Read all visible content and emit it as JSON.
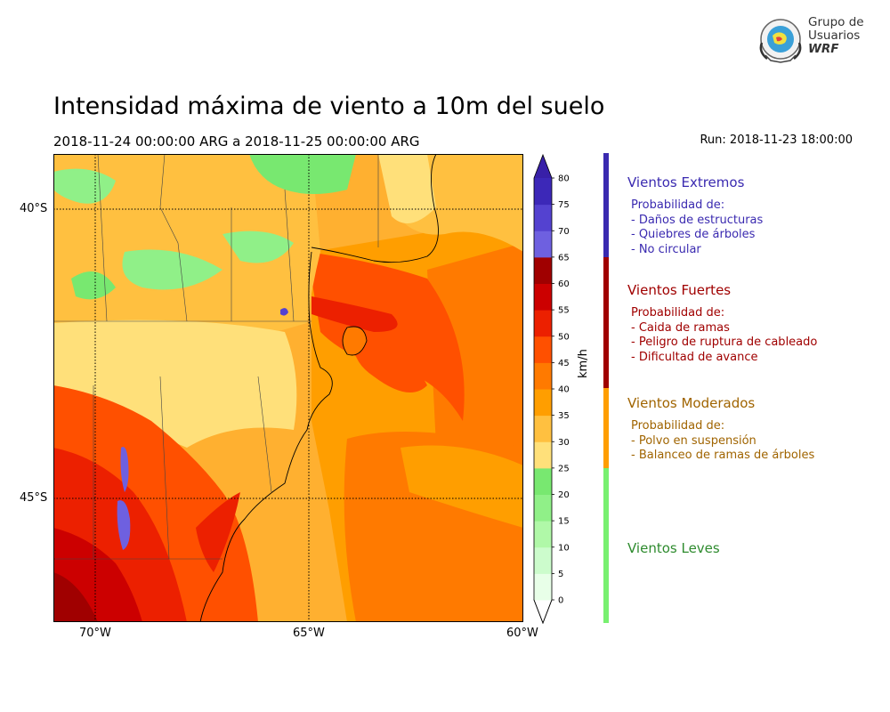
{
  "title": "Intensidad máxima de viento a 10m del suelo",
  "period": "2018-11-24 00:00:00 ARG  a  2018-11-25 00:00:00 ARG",
  "run": "Run: 2018-11-23 18:00:00",
  "logo": {
    "line1": "Grupo de",
    "line2": "Usuarios",
    "line3": "WRF"
  },
  "map": {
    "lat_labels": [
      "40°S",
      "45°S"
    ],
    "lon_labels": [
      "70°W",
      "65°W",
      "60°W"
    ]
  },
  "colorbar": {
    "unit": "km/h",
    "ticks": [
      "0",
      "5",
      "10",
      "15",
      "20",
      "25",
      "30",
      "35",
      "40",
      "45",
      "50",
      "55",
      "60",
      "65",
      "70",
      "75",
      "80"
    ],
    "colors": [
      "#e8ffe8",
      "#ccfccc",
      "#b0f8a8",
      "#90f088",
      "#78e870",
      "#ffe07a",
      "#ffc040",
      "#ff9e00",
      "#ff7a00",
      "#ff5000",
      "#ec2000",
      "#cc0000",
      "#a00000",
      "#6e60e0",
      "#5442d0",
      "#3c28b8"
    ],
    "over_color": "#3820a8",
    "under_color": "#ffffff"
  },
  "categories": [
    {
      "title": "Vientos Extremos",
      "color": "#3a2ab0",
      "lines": [
        "Probabilidad de:",
        "- Daños de estructuras",
        "- Quiebres de árboles",
        "- No circular"
      ]
    },
    {
      "title": "Vientos Fuertes",
      "color": "#a00000",
      "lines": [
        "Probabilidad de:",
        "- Caida de ramas",
        "- Peligro de ruptura de cableado",
        "- Dificultad de avance"
      ]
    },
    {
      "title": "Vientos Moderados",
      "color": "#a06400",
      "bar_color": "#ff9e00",
      "lines": [
        "Probabilidad de:",
        "- Polvo en suspensión",
        "- Balanceo de ramas de árboles"
      ]
    },
    {
      "title": "Vientos Leves",
      "color": "#2e8b2e",
      "bar_color": "#78f070",
      "lines": []
    }
  ]
}
